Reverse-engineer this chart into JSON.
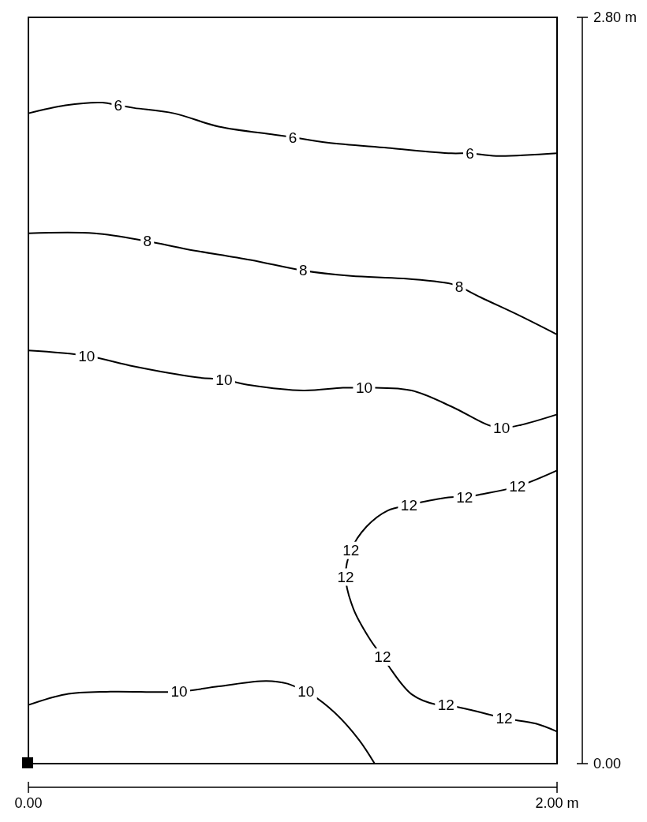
{
  "chart_data": {
    "type": "line",
    "xlim": [
      0,
      2
    ],
    "ylim": [
      0,
      2.8
    ],
    "xticks": [
      {
        "value": 0,
        "label": "0.00"
      },
      {
        "value": 2,
        "label": "2.00 m"
      }
    ],
    "yticks": [
      {
        "value": 0,
        "label": "0.00"
      },
      {
        "value": 2.8,
        "label": "2.80 m"
      }
    ],
    "line_style": "solid",
    "series": [
      {
        "color": "#000000",
        "x": [
          0,
          0.14,
          0.28,
          0.34,
          0.4,
          0.55,
          0.72,
          0.93,
          1.0,
          1.13,
          1.36,
          1.6,
          1.67,
          1.77,
          2
        ],
        "values": [
          2.44,
          2.47,
          2.48,
          2.47,
          2.46,
          2.44,
          2.39,
          2.36,
          2.35,
          2.33,
          2.31,
          2.29,
          2.29,
          2.28,
          2.29
        ]
      },
      {
        "color": "#000000",
        "x": [
          0,
          0.25,
          0.45,
          0.6,
          0.84,
          1.04,
          1.22,
          1.42,
          1.6,
          1.63,
          1.71,
          1.86,
          2
        ],
        "values": [
          1.99,
          1.99,
          1.96,
          1.93,
          1.89,
          1.85,
          1.83,
          1.82,
          1.8,
          1.79,
          1.75,
          1.68,
          1.61
        ]
      },
      {
        "color": "#000000",
        "x": [
          0,
          0.22,
          0.4,
          0.63,
          0.74,
          0.84,
          1.04,
          1.19,
          1.27,
          1.31,
          1.45,
          1.6,
          1.74,
          1.79,
          1.86,
          2
        ],
        "values": [
          1.55,
          1.53,
          1.49,
          1.45,
          1.44,
          1.42,
          1.4,
          1.41,
          1.41,
          1.41,
          1.4,
          1.34,
          1.27,
          1.26,
          1.27,
          1.31
        ]
      },
      {
        "color": "#000000",
        "x": [
          2,
          1.85,
          1.71,
          1.65,
          1.6,
          1.48,
          1.44,
          1.36,
          1.28,
          1.22,
          1.2,
          1.23,
          1.29,
          1.34,
          1.36,
          1.45,
          1.55,
          1.58,
          1.68,
          1.8,
          1.92,
          2
        ],
        "values": [
          1.1,
          1.04,
          1.01,
          1.0,
          1.0,
          0.98,
          0.97,
          0.95,
          0.89,
          0.8,
          0.7,
          0.58,
          0.47,
          0.4,
          0.37,
          0.26,
          0.22,
          0.22,
          0.2,
          0.17,
          0.15,
          0.12
        ]
      },
      {
        "color": "#000000",
        "x": [
          0,
          0.14,
          0.31,
          0.57,
          0.72,
          0.9,
          0.98,
          1.05,
          1.07,
          1.16,
          1.25,
          1.31
        ],
        "values": [
          0.22,
          0.26,
          0.27,
          0.27,
          0.29,
          0.31,
          0.3,
          0.27,
          0.26,
          0.19,
          0.09,
          0
        ]
      }
    ],
    "annotations": [
      {
        "text": "6",
        "x": 0.34,
        "y": 2.47
      },
      {
        "text": "6",
        "x": 1.0,
        "y": 2.35
      },
      {
        "text": "6",
        "x": 1.67,
        "y": 2.29
      },
      {
        "text": "8",
        "x": 0.45,
        "y": 1.96
      },
      {
        "text": "8",
        "x": 1.04,
        "y": 1.85
      },
      {
        "text": "8",
        "x": 1.63,
        "y": 1.79
      },
      {
        "text": "10",
        "x": 0.22,
        "y": 1.53
      },
      {
        "text": "10",
        "x": 0.74,
        "y": 1.44
      },
      {
        "text": "10",
        "x": 1.27,
        "y": 1.41
      },
      {
        "text": "10",
        "x": 1.79,
        "y": 1.26
      },
      {
        "text": "12",
        "x": 1.85,
        "y": 1.04
      },
      {
        "text": "12",
        "x": 1.65,
        "y": 1.0
      },
      {
        "text": "12",
        "x": 1.44,
        "y": 0.97
      },
      {
        "text": "12",
        "x": 1.22,
        "y": 0.8
      },
      {
        "text": "12",
        "x": 1.2,
        "y": 0.7
      },
      {
        "text": "12",
        "x": 1.34,
        "y": 0.4
      },
      {
        "text": "12",
        "x": 1.58,
        "y": 0.22
      },
      {
        "text": "12",
        "x": 1.8,
        "y": 0.17
      },
      {
        "text": "10",
        "x": 0.57,
        "y": 0.27
      },
      {
        "text": "10",
        "x": 1.05,
        "y": 0.27
      }
    ]
  }
}
